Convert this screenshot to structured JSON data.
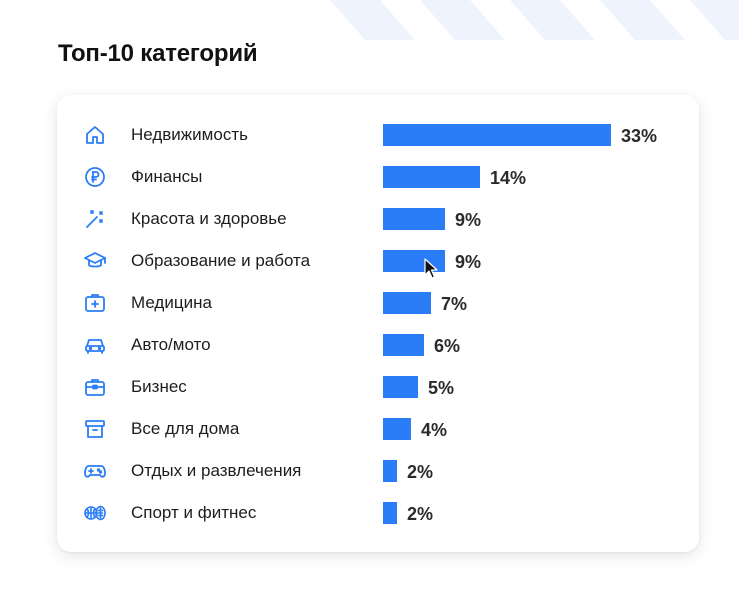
{
  "title": "Топ-10 категорий",
  "chart_data": {
    "type": "bar",
    "orientation": "horizontal",
    "title": "Топ-10 категорий",
    "categories": [
      "Недвижимость",
      "Финансы",
      "Красота и здоровье",
      "Образование и работа",
      "Медицина",
      "Авто/мото",
      "Бизнес",
      "Все для дома",
      "Отдых и развлечения",
      "Спорт и фитнес"
    ],
    "values": [
      33,
      14,
      9,
      9,
      7,
      6,
      5,
      4,
      2,
      2
    ],
    "value_labels": [
      "33%",
      "14%",
      "9%",
      "9%",
      "7%",
      "6%",
      "5%",
      "4%",
      "2%",
      "2%"
    ],
    "unit": "%",
    "icons": [
      "home-icon",
      "ruble-coin-icon",
      "magic-wand-icon",
      "graduation-cap-icon",
      "first-aid-kit-icon",
      "car-icon",
      "briefcase-icon",
      "storage-box-icon",
      "gamepad-icon",
      "sports-balls-icon"
    ],
    "bar_color": "#2a7df7",
    "icon_color": "#2a7df7",
    "grid": false,
    "legend": "none"
  }
}
